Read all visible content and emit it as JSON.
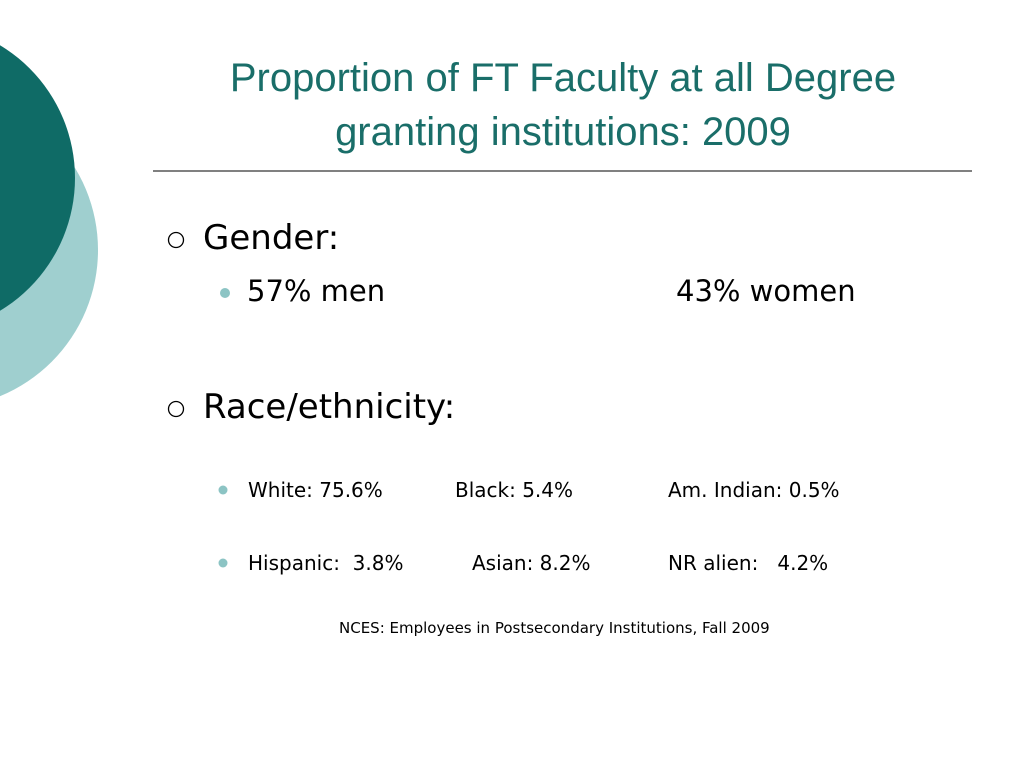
{
  "title_lines": [
    "Proportion of FT Faculty at all Degree",
    "granting institutions: 2009"
  ],
  "sections": [
    {
      "heading": "Gender:",
      "rows": [
        [
          "57% men",
          "43% women"
        ]
      ]
    },
    {
      "heading": "Race/ethnicity:",
      "rows": [
        [
          "White: 75.6%",
          "Black: 5.4%",
          "Am. Indian: 0.5%"
        ],
        [
          "Hispanic:  3.8%",
          "Asian: 8.2%",
          "NR alien:   4.2%"
        ]
      ]
    }
  ],
  "source": "NCES: Employees in Postsecondary Institutions, Fall 2009"
}
